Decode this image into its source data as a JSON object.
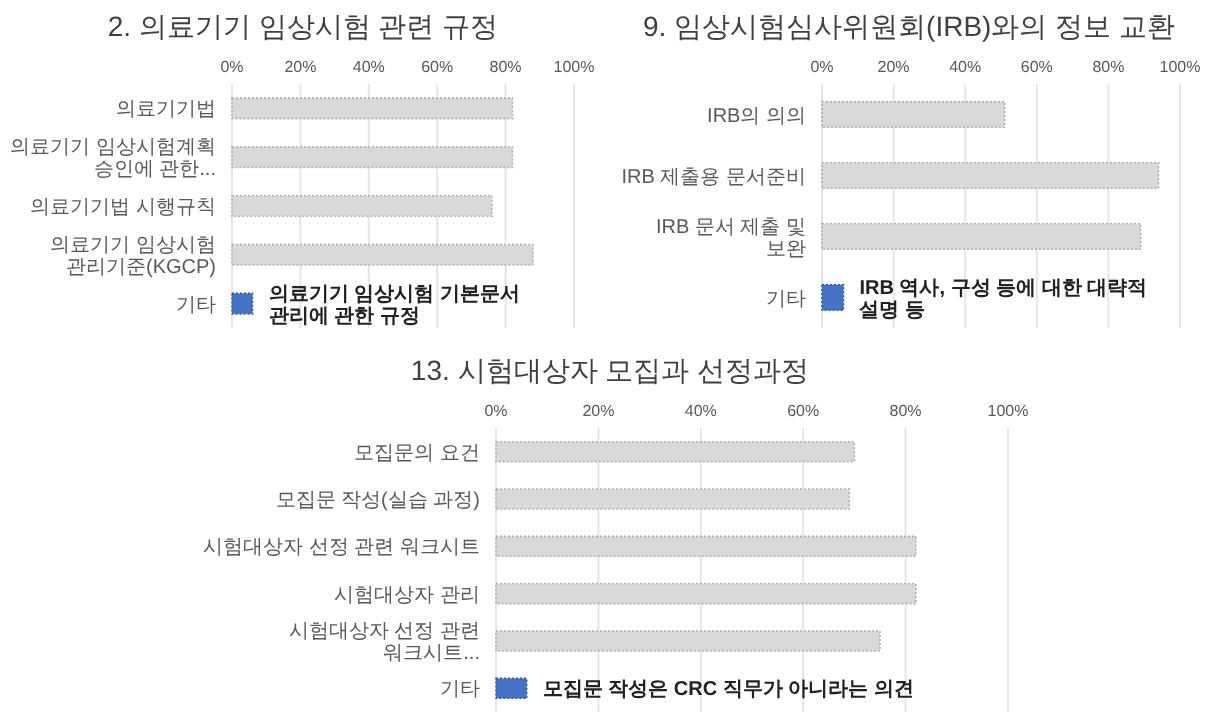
{
  "chart_data": [
    {
      "type": "bar",
      "orientation": "horizontal",
      "title": "2. 의료기기 임상시험 관련 규정",
      "categories": [
        "의료기기법",
        "의료기기 임상시험계획 승인에 관한...",
        "의료기기법 시행규칙",
        "의료기기 임상시험 관리기준(KGCP)",
        "기타"
      ],
      "values": [
        82,
        82,
        76,
        88,
        6
      ],
      "colors": [
        "#d9d9d9",
        "#d9d9d9",
        "#d9d9d9",
        "#d9d9d9",
        "#4472c4"
      ],
      "xlim": [
        0,
        100
      ],
      "xticks": [
        {
          "value": 0,
          "label": "0%"
        },
        {
          "value": 20,
          "label": "20%"
        },
        {
          "value": 40,
          "label": "40%"
        },
        {
          "value": 60,
          "label": "60%"
        },
        {
          "value": 80,
          "label": "80%"
        },
        {
          "value": 100,
          "label": "100%"
        }
      ],
      "grid": "x",
      "annotations": [
        "의료기기 임상시험 기본문서 관리에 관한 규정"
      ]
    },
    {
      "type": "bar",
      "orientation": "horizontal",
      "title": "9. 임상시험심사위원회(IRB)와의 정보 교환",
      "categories": [
        "IRB의 의의",
        "IRB 제출용 문서준비",
        "IRB 문서 제출 및 보완",
        "기타"
      ],
      "values": [
        51,
        94,
        89,
        6
      ],
      "colors": [
        "#d9d9d9",
        "#d9d9d9",
        "#d9d9d9",
        "#4472c4"
      ],
      "xlim": [
        0,
        100
      ],
      "xticks": [
        {
          "value": 0,
          "label": "0%"
        },
        {
          "value": 20,
          "label": "20%"
        },
        {
          "value": 40,
          "label": "40%"
        },
        {
          "value": 60,
          "label": "60%"
        },
        {
          "value": 80,
          "label": "80%"
        },
        {
          "value": 100,
          "label": "100%"
        }
      ],
      "grid": "x",
      "annotations": [
        "IRB 역사, 구성 등에 대한 대략적 설명 등"
      ]
    },
    {
      "type": "bar",
      "orientation": "horizontal",
      "title": "13. 시험대상자 모집과 선정과정",
      "categories": [
        "모집문의 요건",
        "모집문 작성(실습 과정)",
        "시험대상자 선정 관련 워크시트",
        "시험대상자 관리",
        "시험대상자 선정 관련 워크시트...",
        "기타"
      ],
      "values": [
        70,
        69,
        82,
        82,
        75,
        6
      ],
      "colors": [
        "#d9d9d9",
        "#d9d9d9",
        "#d9d9d9",
        "#d9d9d9",
        "#d9d9d9",
        "#4472c4"
      ],
      "xlim": [
        0,
        100
      ],
      "xticks": [
        {
          "value": 0,
          "label": "0%"
        },
        {
          "value": 20,
          "label": "20%"
        },
        {
          "value": 40,
          "label": "40%"
        },
        {
          "value": 60,
          "label": "60%"
        },
        {
          "value": 80,
          "label": "80%"
        },
        {
          "value": 100,
          "label": "100%"
        }
      ],
      "grid": "x",
      "annotations": [
        "모집문 작성은 CRC 직무가 아니라는 의견"
      ]
    }
  ]
}
